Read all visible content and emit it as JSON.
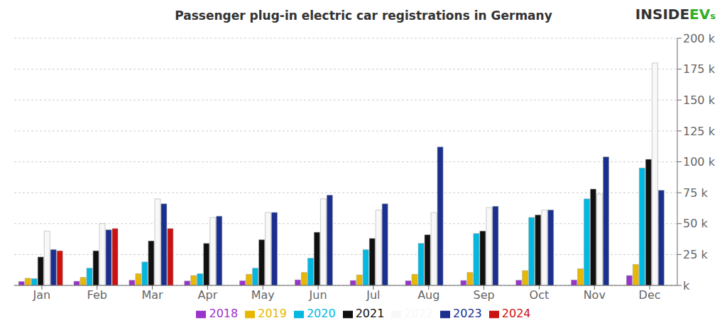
{
  "chart_data": {
    "type": "bar",
    "title": "Passenger plug-in electric car registrations in Germany",
    "categories": [
      "Jan",
      "Feb",
      "Mar",
      "Apr",
      "May",
      "Jun",
      "Jul",
      "Aug",
      "Sep",
      "Oct",
      "Nov",
      "Dec"
    ],
    "series": [
      {
        "name": "2018",
        "color": "#9933cc",
        "values": [
          3200,
          3400,
          4200,
          3600,
          3800,
          4500,
          4000,
          3800,
          4000,
          4200,
          4400,
          8000
        ]
      },
      {
        "name": "2019",
        "color": "#e8b800",
        "values": [
          5800,
          6500,
          9500,
          8000,
          9000,
          10500,
          8500,
          9000,
          10500,
          12000,
          13500,
          17000
        ]
      },
      {
        "name": "2020",
        "color": "#00b8e0",
        "values": [
          5500,
          14000,
          19000,
          9500,
          14000,
          22000,
          29000,
          34000,
          42000,
          55000,
          70000,
          95000
        ]
      },
      {
        "name": "2021",
        "color": "#101010",
        "values": [
          23000,
          28000,
          36000,
          34000,
          37000,
          43000,
          38000,
          41000,
          44000,
          57000,
          78000,
          102000
        ]
      },
      {
        "name": "2022",
        "color": "#f8f8f8",
        "values": [
          44000,
          50000,
          70000,
          55000,
          59000,
          70000,
          61000,
          59000,
          63000,
          61000,
          74000,
          180000
        ]
      },
      {
        "name": "2023",
        "color": "#1a2f8f",
        "values": [
          29000,
          45000,
          66000,
          56000,
          59000,
          73000,
          66000,
          112000,
          64000,
          61000,
          104000,
          77000
        ]
      },
      {
        "name": "2024",
        "color": "#cc1111",
        "values": [
          28000,
          46000,
          46000,
          0,
          0,
          0,
          0,
          0,
          0,
          0,
          0,
          0
        ]
      }
    ],
    "ylim": [
      0,
      200000
    ],
    "yticks": [
      {
        "value": 0,
        "label": "k"
      },
      {
        "value": 25000,
        "label": "25 k"
      },
      {
        "value": 50000,
        "label": "50 k"
      },
      {
        "value": 75000,
        "label": "75 k"
      },
      {
        "value": 100000,
        "label": "100 k"
      },
      {
        "value": 125000,
        "label": "125 k"
      },
      {
        "value": 150000,
        "label": "150 k"
      },
      {
        "value": 175000,
        "label": "175 k"
      },
      {
        "value": 200000,
        "label": "200 k"
      }
    ],
    "grid": true,
    "legend": "bottom",
    "annotations": [
      "INSIDE",
      "EV",
      "s"
    ]
  }
}
